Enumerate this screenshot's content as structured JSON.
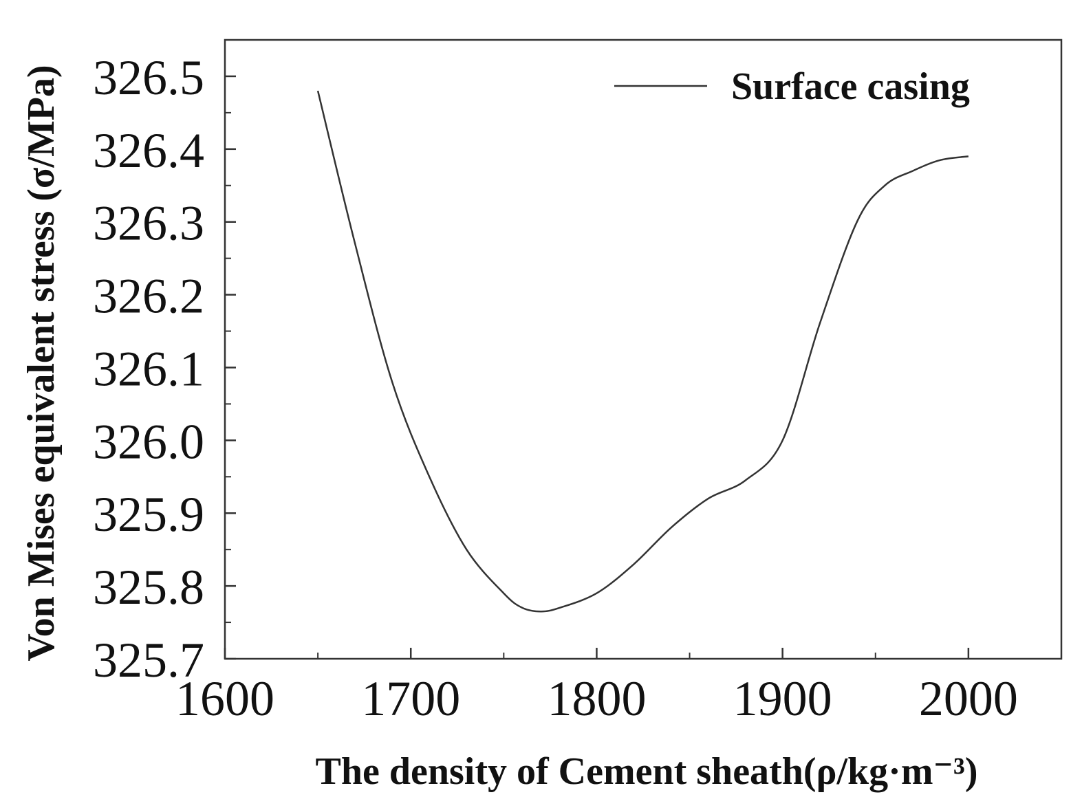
{
  "chart_data": {
    "type": "line",
    "title": "",
    "xlabel": "The density of Cement sheath(ρ/kg·m⁻³)",
    "ylabel": "Von Mises equivalent stress (σ/MPa)",
    "xlim": [
      1600,
      2050
    ],
    "ylim": [
      325.7,
      326.55
    ],
    "xticks": [
      1600,
      1700,
      1800,
      1900,
      2000
    ],
    "xtick_labels": [
      "1600",
      "1700",
      "1800",
      "1900",
      "2000"
    ],
    "yticks": [
      325.7,
      325.8,
      325.9,
      326.0,
      326.1,
      326.2,
      326.3,
      326.4,
      326.5
    ],
    "ytick_labels": [
      "325.7",
      "325.8",
      "325.9",
      "326.0",
      "326.1",
      "326.2",
      "326.3",
      "326.4",
      "326.5"
    ],
    "grid": false,
    "legend_position": "top-right",
    "series": [
      {
        "name": "Surface casing",
        "color": "#333333",
        "x": [
          1650,
          1670,
          1690,
          1710,
          1730,
          1750,
          1760,
          1770,
          1780,
          1800,
          1820,
          1840,
          1860,
          1880,
          1900,
          1920,
          1940,
          1955,
          1970,
          1985,
          2000
        ],
        "y": [
          326.48,
          326.27,
          326.08,
          325.95,
          325.85,
          325.79,
          325.77,
          325.765,
          325.77,
          325.79,
          325.83,
          325.88,
          325.92,
          325.945,
          326.0,
          326.16,
          326.3,
          326.35,
          326.37,
          326.385,
          326.39
        ]
      }
    ]
  }
}
